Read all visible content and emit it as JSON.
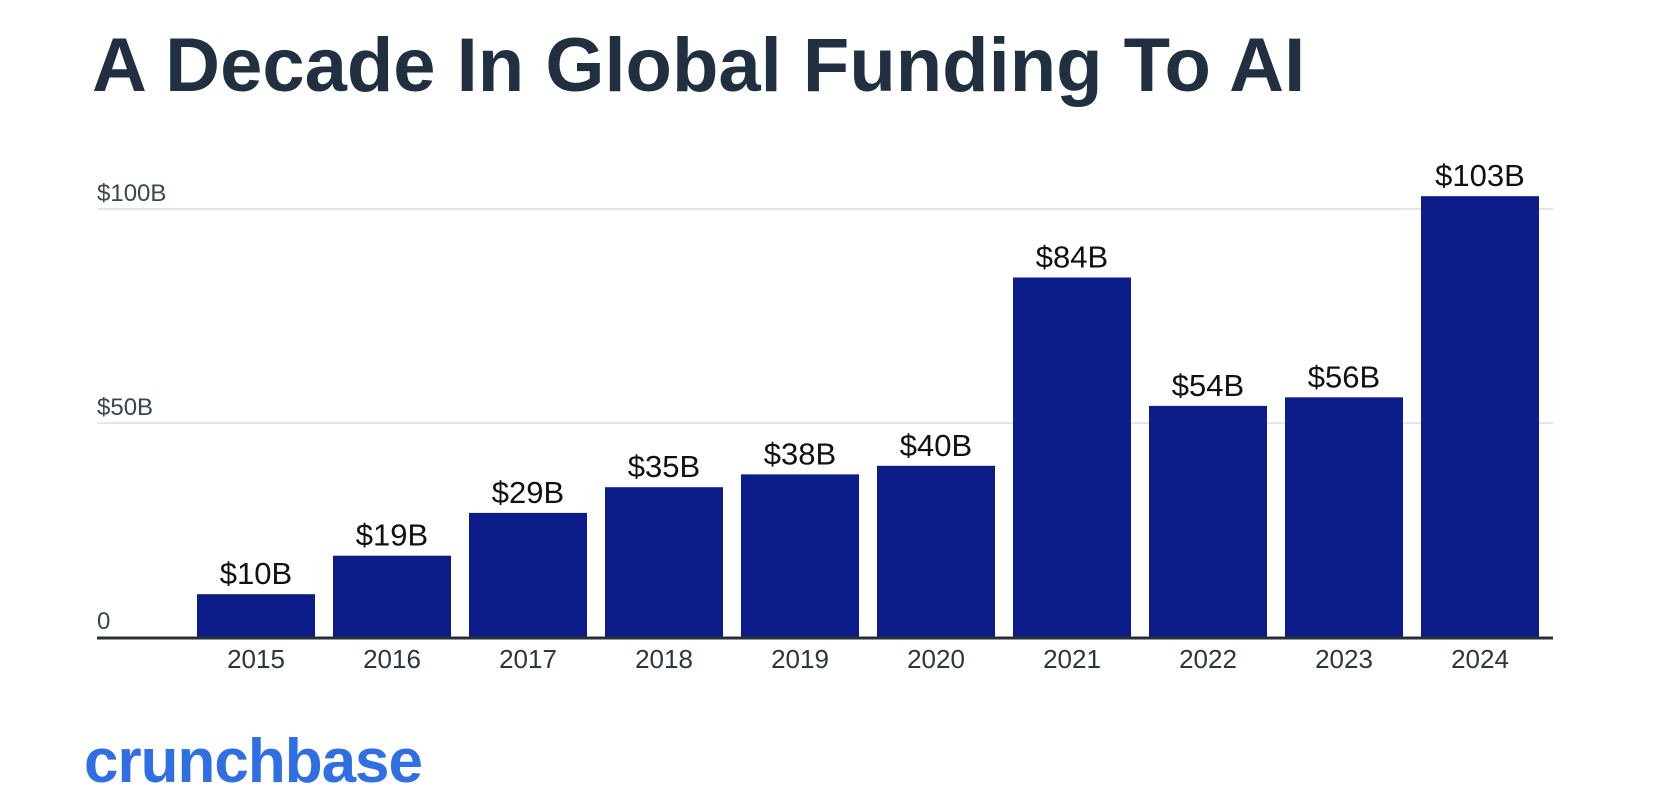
{
  "title": "A Decade In Global Funding To AI",
  "logo": "crunchbase",
  "colors": {
    "bar": "#0c1c88",
    "title": "#203040",
    "logo": "#2f6ee3",
    "axis": "#263238",
    "grid": "#e6e6e6"
  },
  "chart_data": {
    "type": "bar",
    "title": "A Decade In Global Funding To AI",
    "xlabel": "",
    "ylabel": "",
    "categories": [
      "2015",
      "2016",
      "2017",
      "2018",
      "2019",
      "2020",
      "2021",
      "2022",
      "2023",
      "2024"
    ],
    "values": [
      10,
      19,
      29,
      35,
      38,
      40,
      84,
      54,
      56,
      103
    ],
    "data_labels": [
      "$10B",
      "$19B",
      "$29B",
      "$35B",
      "$38B",
      "$40B",
      "$84B",
      "$54B",
      "$56B",
      "$103B"
    ],
    "ylim": [
      0,
      103
    ],
    "yticks": [
      0,
      50,
      100
    ],
    "ytick_labels": [
      "0",
      "$50B",
      "$100B"
    ],
    "grid": true,
    "legend": "none"
  }
}
